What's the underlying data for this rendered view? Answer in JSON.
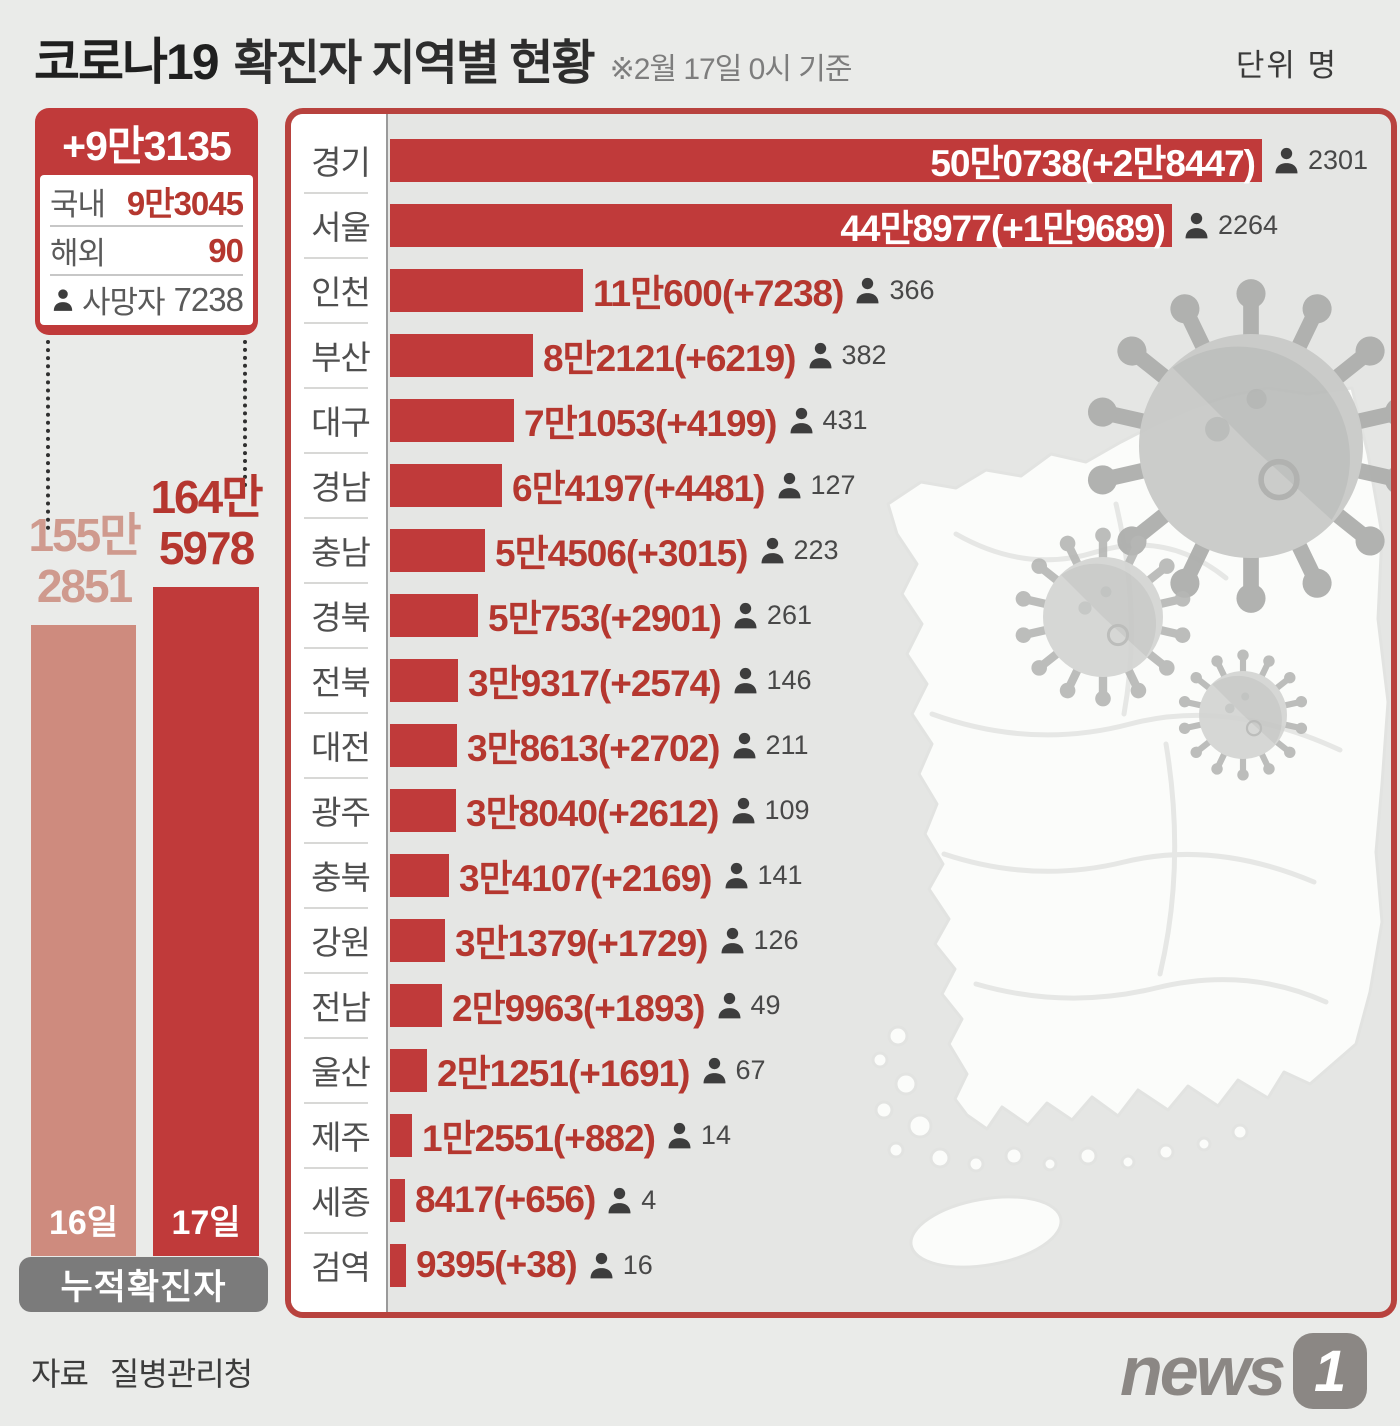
{
  "title": {
    "strong": "코로나19",
    "rest": "확진자 지역별 현황",
    "note": "※2월 17일 0시 기준",
    "unit": "단위 명"
  },
  "summary": {
    "new_total": "+9만3135",
    "rows": [
      {
        "label": "국내",
        "value": "9만3045"
      },
      {
        "label": "해외",
        "value": "90"
      },
      {
        "label": "사망자",
        "value": "7238"
      }
    ]
  },
  "cumulative": {
    "badge": "누적확진자",
    "bars": [
      {
        "day": "16일",
        "value": 1552851,
        "value_lines": "155만\n2851"
      },
      {
        "day": "17일",
        "value": 1645978,
        "value_lines": "164만\n5978"
      }
    ]
  },
  "regions": [
    {
      "name": "경기",
      "total": 500738,
      "total_label": "50만0738",
      "delta_label": "+2만8447",
      "deaths": "2301",
      "inside": true
    },
    {
      "name": "서울",
      "total": 448977,
      "total_label": "44만8977",
      "delta_label": "+1만9689",
      "deaths": "2264",
      "inside": true
    },
    {
      "name": "인천",
      "total": 110600,
      "total_label": "11만600",
      "delta_label": "+7238",
      "deaths": "366",
      "inside": false
    },
    {
      "name": "부산",
      "total": 82121,
      "total_label": "8만2121",
      "delta_label": "+6219",
      "deaths": "382",
      "inside": false
    },
    {
      "name": "대구",
      "total": 71053,
      "total_label": "7만1053",
      "delta_label": "+4199",
      "deaths": "431",
      "inside": false
    },
    {
      "name": "경남",
      "total": 64197,
      "total_label": "6만4197",
      "delta_label": "+4481",
      "deaths": "127",
      "inside": false
    },
    {
      "name": "충남",
      "total": 54506,
      "total_label": "5만4506",
      "delta_label": "+3015",
      "deaths": "223",
      "inside": false
    },
    {
      "name": "경북",
      "total": 50753,
      "total_label": "5만753",
      "delta_label": "+2901",
      "deaths": "261",
      "inside": false
    },
    {
      "name": "전북",
      "total": 39317,
      "total_label": "3만9317",
      "delta_label": "+2574",
      "deaths": "146",
      "inside": false
    },
    {
      "name": "대전",
      "total": 38613,
      "total_label": "3만8613",
      "delta_label": "+2702",
      "deaths": "211",
      "inside": false
    },
    {
      "name": "광주",
      "total": 38040,
      "total_label": "3만8040",
      "delta_label": "+2612",
      "deaths": "109",
      "inside": false
    },
    {
      "name": "충북",
      "total": 34107,
      "total_label": "3만4107",
      "delta_label": "+2169",
      "deaths": "141",
      "inside": false
    },
    {
      "name": "강원",
      "total": 31379,
      "total_label": "3만1379",
      "delta_label": "+1729",
      "deaths": "126",
      "inside": false
    },
    {
      "name": "전남",
      "total": 29963,
      "total_label": "2만9963",
      "delta_label": "+1893",
      "deaths": "49",
      "inside": false
    },
    {
      "name": "울산",
      "total": 21251,
      "total_label": "2만1251",
      "delta_label": "+1691",
      "deaths": "67",
      "inside": false
    },
    {
      "name": "제주",
      "total": 12551,
      "total_label": "1만2551",
      "delta_label": "+882",
      "deaths": "14",
      "inside": false
    },
    {
      "name": "세종",
      "total": 8417,
      "total_label": "8417",
      "delta_label": "+656",
      "deaths": "4",
      "inside": false
    },
    {
      "name": "검역",
      "total": 9395,
      "total_label": "9395",
      "delta_label": "+38",
      "deaths": "16",
      "inside": false
    }
  ],
  "footer": {
    "source_prefix": "자료",
    "source_name": "질병관리청",
    "logo_text": "news",
    "logo_num": "1"
  },
  "colors": {
    "bar_red": "#c03a3a",
    "bar_pink": "#ce8b7e",
    "panel_border": "#b8423e",
    "value_red": "#b5372f",
    "value_pink": "#cf9a8e",
    "badge_gray": "#7b7b7b",
    "logo_gray": "#8b8784",
    "background": "#eaebe9"
  },
  "chart_data": [
    {
      "type": "bar",
      "title": "누적확진자",
      "orientation": "vertical",
      "categories": [
        "16일",
        "17일"
      ],
      "values": [
        1552851,
        1645978
      ],
      "legend_position": "none",
      "grid": false
    },
    {
      "type": "bar",
      "title": "코로나19 확진자 지역별 현황 (2월 17일 0시 기준, 단위 명)",
      "orientation": "horizontal",
      "categories": [
        "경기",
        "서울",
        "인천",
        "부산",
        "대구",
        "경남",
        "충남",
        "경북",
        "전북",
        "대전",
        "광주",
        "충북",
        "강원",
        "전남",
        "울산",
        "제주",
        "세종",
        "검역"
      ],
      "series": [
        {
          "name": "누적 확진자",
          "values": [
            500738,
            448977,
            110600,
            82121,
            71053,
            64197,
            54506,
            50753,
            39317,
            38613,
            38040,
            34107,
            31379,
            29963,
            21251,
            12551,
            8417,
            9395
          ]
        },
        {
          "name": "신규 확진자",
          "values": [
            28447,
            19689,
            7238,
            6219,
            4199,
            4481,
            3015,
            2901,
            2574,
            2702,
            2612,
            2169,
            1729,
            1893,
            1691,
            882,
            656,
            38
          ]
        },
        {
          "name": "사망자",
          "values": [
            2301,
            2264,
            366,
            382,
            431,
            127,
            223,
            261,
            146,
            211,
            109,
            141,
            126,
            49,
            67,
            14,
            4,
            16
          ]
        }
      ],
      "xlim": [
        0,
        500738
      ],
      "grid": false,
      "legend_position": "none"
    }
  ]
}
